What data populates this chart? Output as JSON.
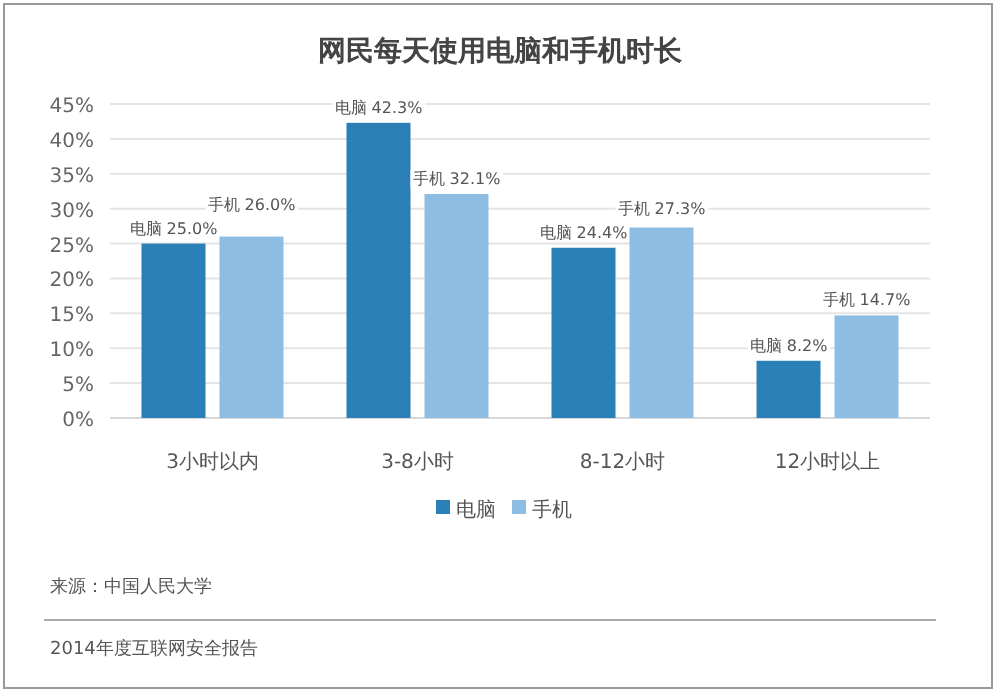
{
  "chart_data": {
    "type": "bar",
    "title": "网民每天使用电脑和手机时长",
    "categories": [
      "3小时以内",
      "3-8小时",
      "8-12小时",
      "12小时以上"
    ],
    "series": [
      {
        "name": "电脑",
        "color": "#2a7fb6",
        "values": [
          25.0,
          42.3,
          24.4,
          8.2
        ],
        "value_labels": [
          "电脑 25.0%",
          "电脑 42.3%",
          "电脑 24.4%",
          "电脑 8.2%"
        ]
      },
      {
        "name": "手机",
        "color": "#8dbde2",
        "values": [
          26.0,
          32.1,
          27.3,
          14.7
        ],
        "value_labels": [
          "手机 26.0%",
          "手机 32.1%",
          "手机 27.3%",
          "手机 14.7%"
        ]
      }
    ],
    "ylim": [
      0,
      45
    ],
    "yticks": [
      {
        "value": 0,
        "label": "0%"
      },
      {
        "value": 5,
        "label": "5%"
      },
      {
        "value": 10,
        "label": "10%"
      },
      {
        "value": 15,
        "label": "15%"
      },
      {
        "value": 20,
        "label": "20%"
      },
      {
        "value": 25,
        "label": "25%"
      },
      {
        "value": 30,
        "label": "30%"
      },
      {
        "value": 35,
        "label": "35%"
      },
      {
        "value": 40,
        "label": "40%"
      },
      {
        "value": 45,
        "label": "45%"
      }
    ],
    "grid": "y",
    "legend": "bottom",
    "annotations": [
      "来源：中国人民大学",
      "2014年度互联网安全报告"
    ]
  }
}
